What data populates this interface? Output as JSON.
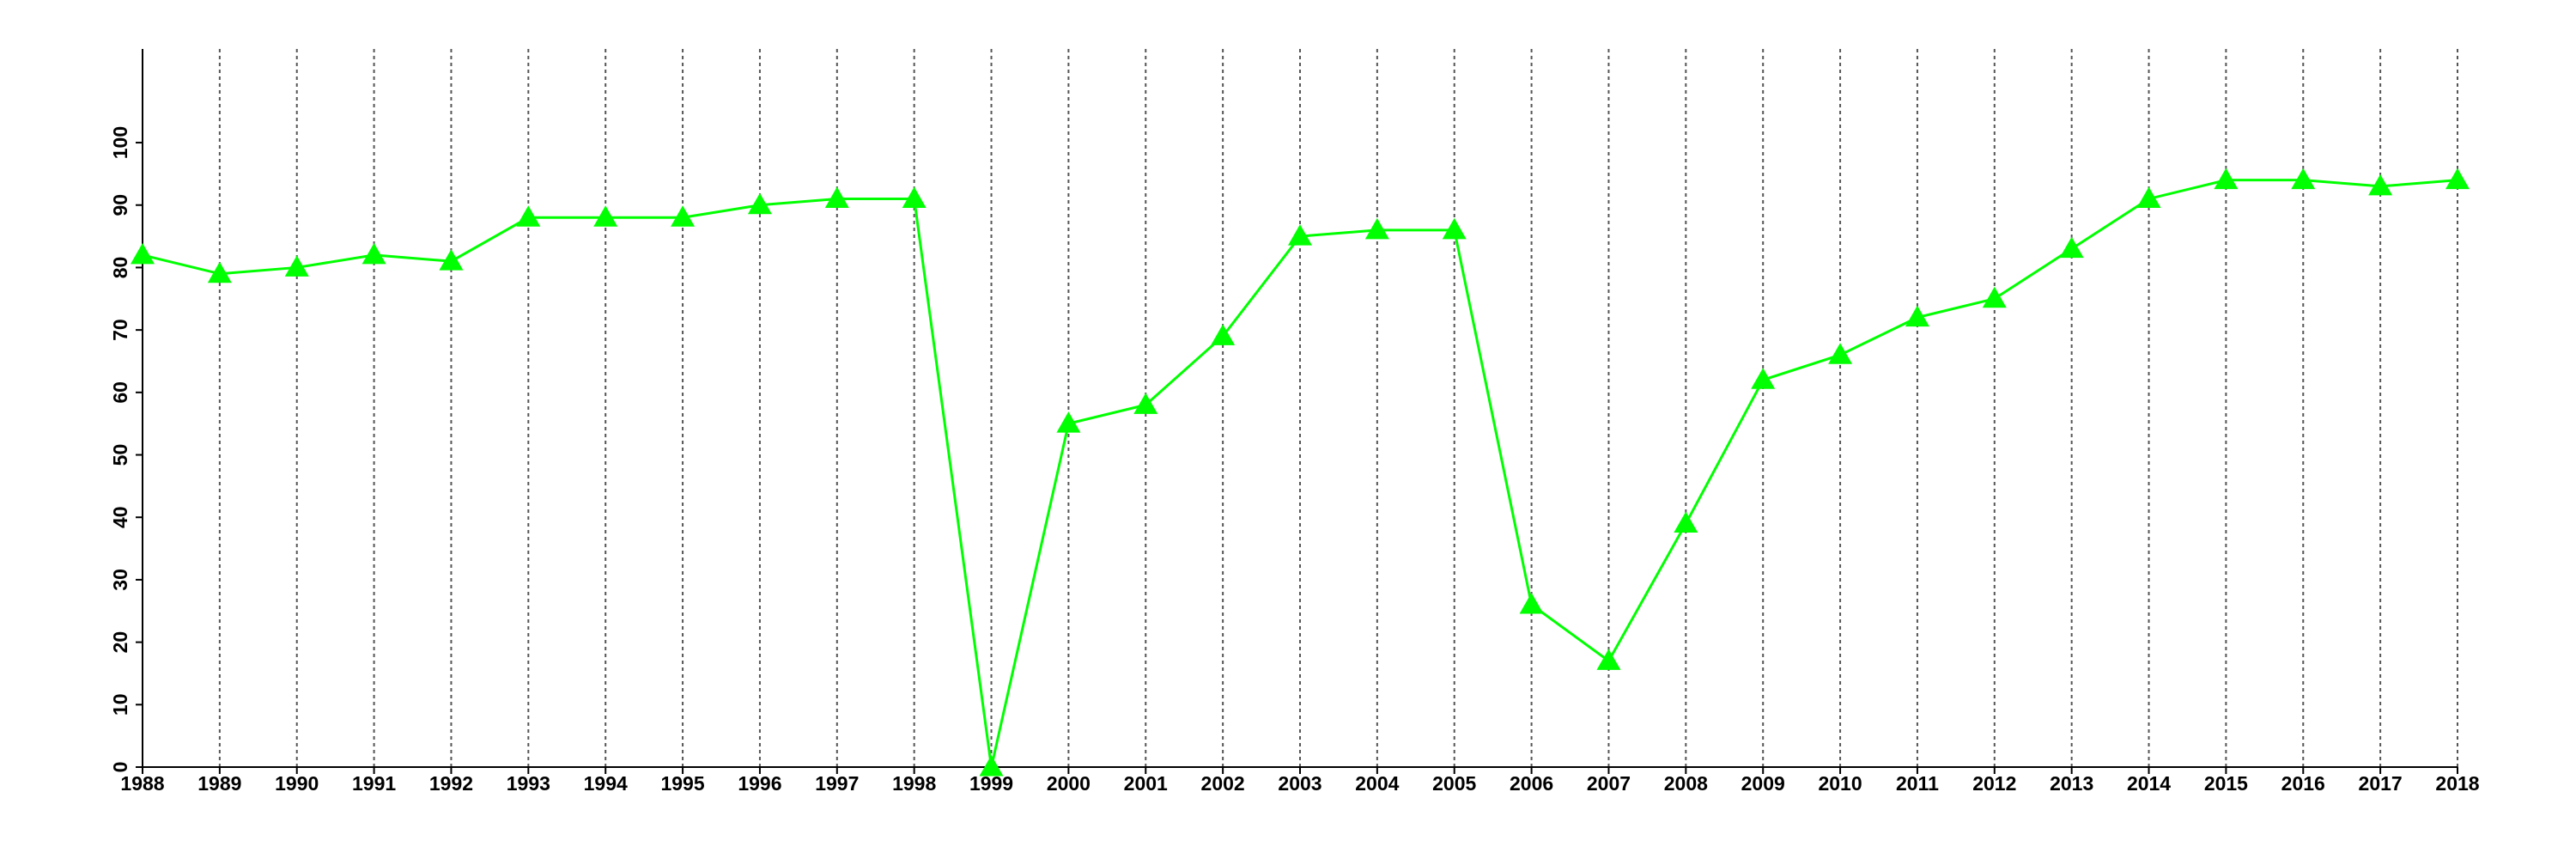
{
  "chart_data": {
    "type": "line",
    "x": [
      1988,
      1989,
      1990,
      1991,
      1992,
      1993,
      1994,
      1995,
      1996,
      1997,
      1998,
      1999,
      2000,
      2001,
      2002,
      2003,
      2004,
      2005,
      2006,
      2007,
      2008,
      2009,
      2010,
      2011,
      2012,
      2013,
      2014,
      2015,
      2016,
      2017,
      2018
    ],
    "series": [
      {
        "color": "#00ff00",
        "values": [
          82,
          79,
          80,
          82,
          81,
          88,
          88,
          88,
          90,
          91,
          91,
          0,
          55,
          58,
          69,
          85,
          86,
          86,
          26,
          17,
          39,
          62,
          66,
          72,
          75,
          83,
          91,
          94,
          94,
          93,
          94
        ]
      }
    ],
    "xlim": [
      1988,
      2018
    ],
    "xticks": [
      1988,
      1989,
      1990,
      1991,
      1992,
      1993,
      1994,
      1995,
      1996,
      1997,
      1998,
      1999,
      2000,
      2001,
      2002,
      2003,
      2004,
      2005,
      2006,
      2007,
      2008,
      2009,
      2010,
      2011,
      2012,
      2013,
      2014,
      2015,
      2016,
      2017,
      2018
    ],
    "ylim": [
      0,
      115
    ],
    "yticks": [
      0,
      10,
      20,
      30,
      40,
      50,
      60,
      70,
      80,
      90,
      100
    ],
    "grid": true,
    "marker": "triangle"
  }
}
